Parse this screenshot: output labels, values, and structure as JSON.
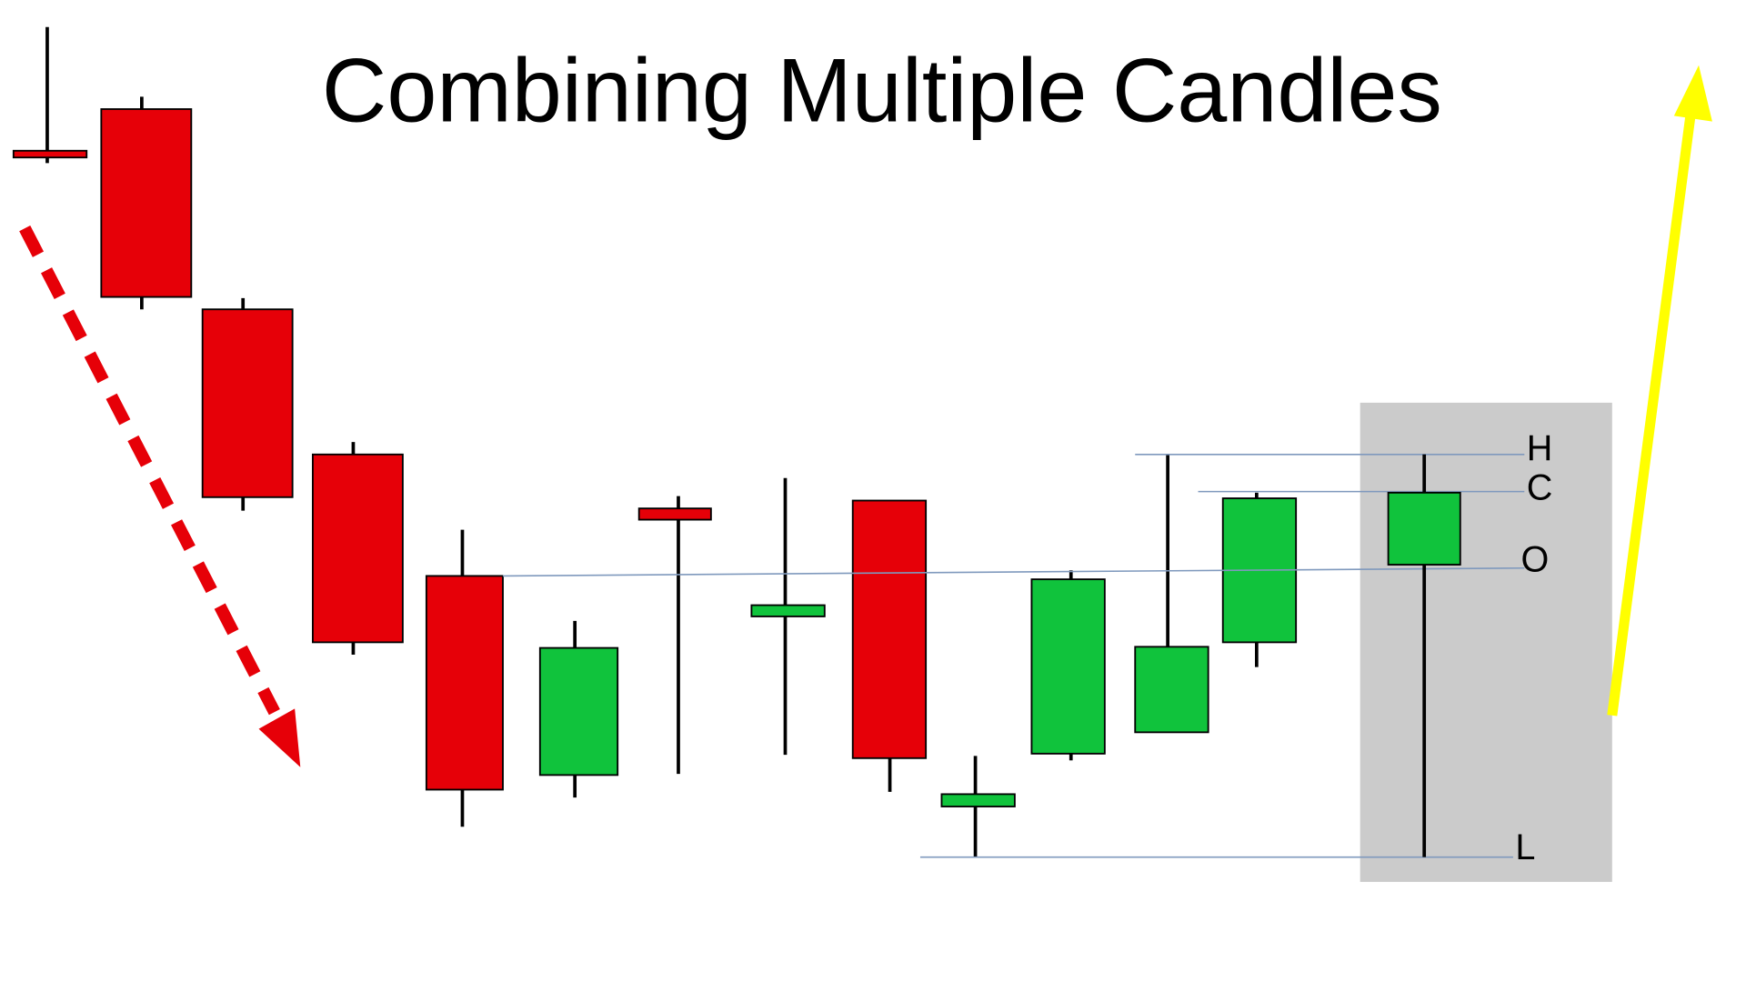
{
  "title": "Combining Multiple Candles",
  "labels": {
    "high": "H",
    "close": "C",
    "open": "O",
    "low": "L"
  }
}
